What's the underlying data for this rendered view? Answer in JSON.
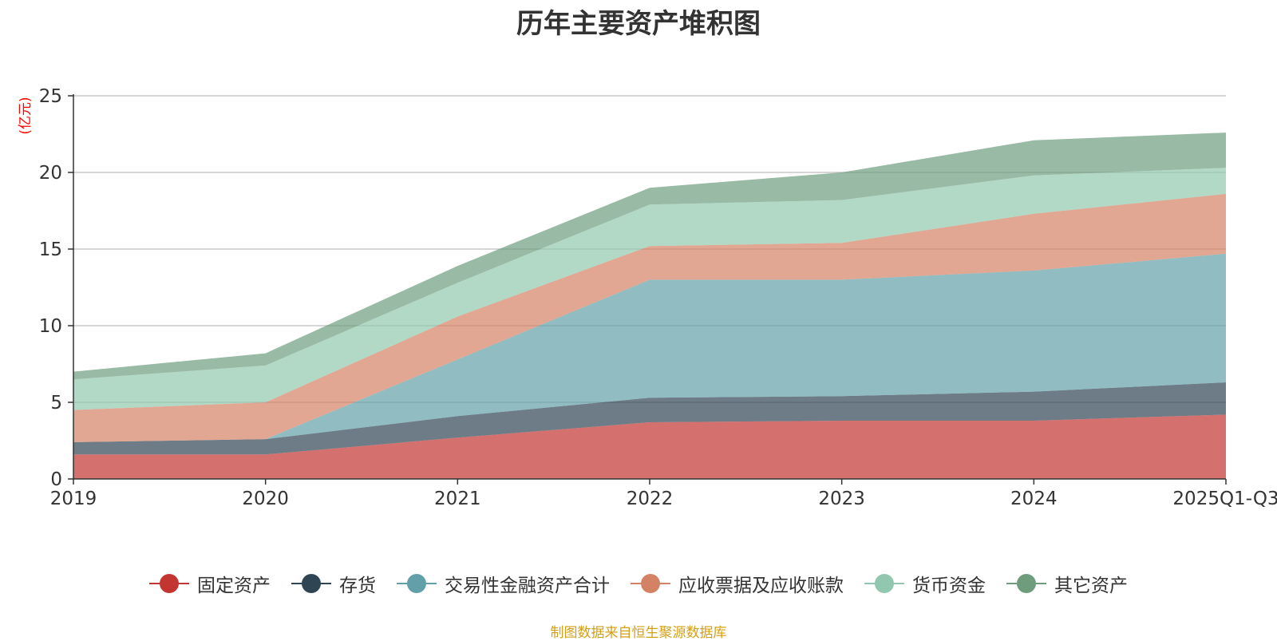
{
  "chart_data": {
    "type": "area",
    "stacked": true,
    "title": "历年主要资产堆积图",
    "ylabel": "(亿元)",
    "xlabel": "",
    "ylim": [
      0,
      25
    ],
    "yticks": [
      0,
      5,
      10,
      15,
      20,
      25
    ],
    "categories": [
      "2019",
      "2020",
      "2021",
      "2022",
      "2023",
      "2024",
      "2025Q1-Q3"
    ],
    "grid": true,
    "legend_position": "bottom",
    "series": [
      {
        "name": "固定资产",
        "color": "#c23531",
        "values": [
          1.6,
          1.6,
          2.7,
          3.7,
          3.8,
          3.8,
          4.2
        ]
      },
      {
        "name": "存货",
        "color": "#2f4554",
        "values": [
          0.8,
          1.0,
          1.4,
          1.6,
          1.6,
          1.9,
          2.1
        ]
      },
      {
        "name": "交易性金融资产合计",
        "color": "#61a0a8",
        "values": [
          0.0,
          0.0,
          3.7,
          7.7,
          7.6,
          7.9,
          8.4
        ]
      },
      {
        "name": "应收票据及应收账款",
        "color": "#d48265",
        "values": [
          2.1,
          2.4,
          2.8,
          2.2,
          2.4,
          3.7,
          3.9
        ]
      },
      {
        "name": "货币资金",
        "color": "#91c7ae",
        "values": [
          2.0,
          2.4,
          2.2,
          2.7,
          2.8,
          2.5,
          1.7
        ]
      },
      {
        "name": "其它资产",
        "color": "#6e9c7d",
        "values": [
          0.5,
          0.8,
          1.1,
          1.1,
          1.8,
          2.3,
          2.3
        ]
      }
    ]
  },
  "source": "制图数据来自恒生聚源数据库"
}
